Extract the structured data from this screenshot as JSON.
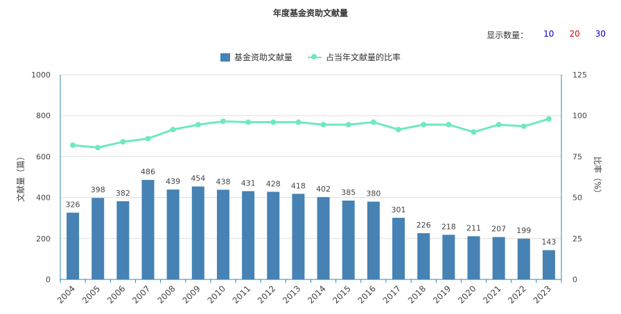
{
  "title": "年度基金资助文献量",
  "count_switch": {
    "label": "显示数量：",
    "options": [
      {
        "label": "10",
        "color": "#0000cc"
      },
      {
        "label": "20",
        "color": "#e00000"
      },
      {
        "label": "30",
        "color": "#0000cc"
      }
    ]
  },
  "colors": {
    "bar": "#4682b4",
    "line": "#6ee8c0",
    "axis": "#2e86ab",
    "grid": "#dddddd"
  },
  "chart_data": {
    "type": "bar",
    "title": "年度基金资助文献量",
    "categories": [
      "2004",
      "2005",
      "2006",
      "2007",
      "2008",
      "2009",
      "2010",
      "2011",
      "2012",
      "2013",
      "2014",
      "2015",
      "2016",
      "2017",
      "2018",
      "2019",
      "2020",
      "2021",
      "2022",
      "2023"
    ],
    "series": [
      {
        "name": "基金资助文献量",
        "type": "bar",
        "axis": "left",
        "values": [
          326,
          398,
          382,
          486,
          439,
          454,
          438,
          431,
          428,
          418,
          402,
          385,
          380,
          301,
          226,
          218,
          211,
          207,
          199,
          143
        ]
      },
      {
        "name": "占当年文献量的比率",
        "type": "line",
        "axis": "right",
        "values": [
          82,
          80.5,
          84,
          86,
          91.5,
          94.5,
          96.5,
          96,
          96,
          96,
          94.5,
          94.5,
          96,
          91.5,
          94.5,
          94.5,
          90,
          94.5,
          93.5,
          98
        ]
      }
    ],
    "ylabel": "文献量（篇）",
    "ylim": [
      0,
      1000
    ],
    "yticks": [
      0,
      200,
      400,
      600,
      800,
      1000
    ],
    "y2label": "比率（%）",
    "y2lim": [
      0,
      125
    ],
    "y2ticks": [
      0,
      25,
      50,
      75,
      100,
      125
    ],
    "grid": true,
    "legend_position": "top-center"
  }
}
